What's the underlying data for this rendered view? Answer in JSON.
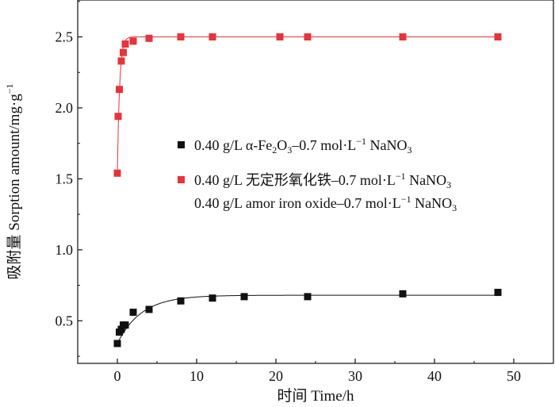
{
  "chart_data": {
    "type": "scatter",
    "title": "",
    "xlabel": "时间 Time/h",
    "ylabel": "吸附量 Sorption  amount/mg·g",
    "ylabel_sup": "−1",
    "xlim": [
      -5,
      55
    ],
    "ylim": [
      0.2,
      2.76
    ],
    "xticks": [
      0,
      10,
      20,
      30,
      40,
      50
    ],
    "yticks": [
      0.5,
      1.0,
      1.5,
      2.0,
      2.5
    ],
    "xtick_labels": [
      "0",
      "10",
      "20",
      "30",
      "40",
      "50"
    ],
    "ytick_labels": [
      "0.5",
      "1.0",
      "1.5",
      "2.0",
      "2.5"
    ],
    "series": [
      {
        "name": "0.40 g/L α-Fe2O3–0.7 mol·L−1 NaNO3",
        "color": "#111111",
        "marker": "square",
        "x": [
          0,
          0.25,
          0.5,
          0.75,
          1,
          2,
          4,
          8,
          12,
          16,
          24,
          36,
          48
        ],
        "y": [
          0.34,
          0.42,
          0.44,
          0.47,
          0.47,
          0.56,
          0.58,
          0.64,
          0.66,
          0.67,
          0.67,
          0.69,
          0.7
        ],
        "fit": {
          "ymax": 0.68,
          "y0": 0.34,
          "k": 0.33
        }
      },
      {
        "name": "0.40 g/L 无定形氧化铁–0.7 mol·L−1 NaNO3",
        "color": "#e8333a",
        "marker": "square",
        "x": [
          0,
          0.1,
          0.25,
          0.5,
          0.75,
          1,
          2,
          4,
          8,
          12,
          20.5,
          24,
          36,
          48
        ],
        "y": [
          1.54,
          1.94,
          2.13,
          2.33,
          2.39,
          2.45,
          2.47,
          2.49,
          2.5,
          2.5,
          2.5,
          2.5,
          2.5,
          2.5
        ],
        "fit": {
          "ymax": 2.5,
          "y0": 1.54,
          "k": 3.5
        }
      }
    ],
    "legend": {
      "position": "center-right",
      "entries": [
        {
          "marker_color": "#111111",
          "prefix": "0.40 g/L α-Fe",
          "sub1": "2",
          "mid": "O",
          "sub2": "3",
          "rest": "–0.7 mol·L",
          "sup": "−1",
          "tail": " NaNO",
          "sub3": "3"
        },
        {
          "marker_color": "#e8333a",
          "prefix": "0.40 g/L 无定形氧化铁–0.7 mol·L",
          "sup": "−1",
          "tail": " NaNO",
          "sub3": "3"
        },
        {
          "marker_color": "",
          "prefix": "0.40 g/L amor iron oxide–0.7 mol·L",
          "sup": "−1",
          "tail": " NaNO",
          "sub3": "3"
        }
      ]
    }
  }
}
